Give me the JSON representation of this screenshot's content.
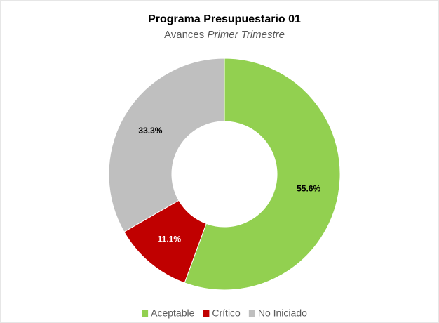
{
  "chart_data": {
    "type": "donut",
    "title": "Programa Presupuestario 01",
    "subtitle": [
      "Avances",
      "Primer Trimestre"
    ],
    "categories": [
      "Aceptable",
      "Crítico",
      "No Iniciado"
    ],
    "values": [
      55.6,
      11.1,
      33.3
    ],
    "value_labels": [
      "55.6%",
      "11.1%",
      "33.3%"
    ],
    "colors": [
      "#92d050",
      "#c00000",
      "#bfbfbf"
    ],
    "legend": "bottom"
  }
}
